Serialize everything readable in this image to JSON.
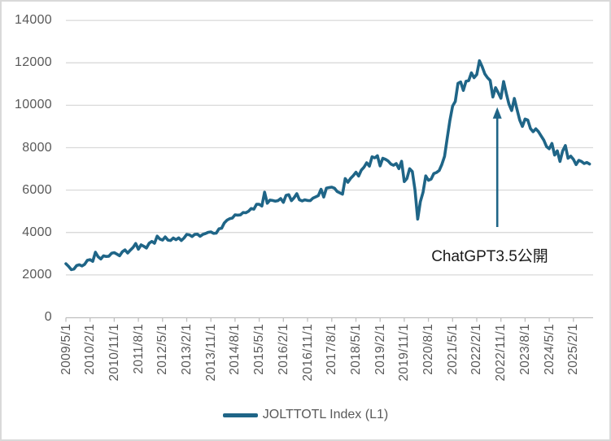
{
  "legend": {
    "label": "JOLTTOTL Index (L1)"
  },
  "chart_data": {
    "type": "line",
    "title": "",
    "xlabel": "",
    "ylabel": "",
    "ylim": [
      0,
      14000
    ],
    "y_ticks": [
      0,
      2000,
      4000,
      6000,
      8000,
      10000,
      12000,
      14000
    ],
    "grid": "horizontal",
    "legend_position": "bottom",
    "x_tick_labels": [
      "2009/5/1",
      "2010/2/1",
      "2010/11/1",
      "2011/8/1",
      "2012/5/1",
      "2013/2/1",
      "2013/11/1",
      "2014/8/1",
      "2015/5/1",
      "2016/2/1",
      "2016/11/1",
      "2017/8/1",
      "2018/5/1",
      "2019/2/1",
      "2019/11/1",
      "2020/8/1",
      "2021/5/1",
      "2022/2/1",
      "2022/11/1",
      "2023/8/1",
      "2024/5/1",
      "2025/2/1"
    ],
    "x_tick_interval_months": 9,
    "annotation": {
      "text": "ChatGPT3.5公開",
      "arrow_points_to_date": "2022/11/1"
    },
    "series": [
      {
        "name": "JOLTTOTL Index (L1)",
        "start_date": "2009/5/1",
        "frequency": "monthly",
        "values": [
          2530,
          2400,
          2250,
          2280,
          2440,
          2480,
          2420,
          2500,
          2690,
          2720,
          2640,
          3070,
          2860,
          2750,
          2900,
          2870,
          2880,
          3020,
          3050,
          2980,
          2900,
          3090,
          3180,
          3030,
          3170,
          3290,
          3480,
          3210,
          3420,
          3350,
          3270,
          3490,
          3580,
          3490,
          3830,
          3690,
          3640,
          3790,
          3640,
          3620,
          3740,
          3660,
          3750,
          3620,
          3740,
          3910,
          3890,
          3810,
          3910,
          3920,
          3820,
          3910,
          3950,
          4010,
          4030,
          3960,
          3970,
          4170,
          4200,
          4450,
          4580,
          4650,
          4680,
          4830,
          4820,
          4830,
          4940,
          4930,
          5000,
          5130,
          5100,
          5330,
          5330,
          5250,
          5900,
          5380,
          5530,
          5510,
          5480,
          5500,
          5600,
          5420,
          5750,
          5780,
          5500,
          5640,
          5830,
          5540,
          5490,
          5540,
          5510,
          5500,
          5620,
          5680,
          5740,
          6040,
          5670,
          6090,
          6120,
          6140,
          6090,
          5930,
          5870,
          5810,
          6540,
          6370,
          6550,
          6680,
          6840,
          6660,
          6940,
          7080,
          7290,
          7130,
          7570,
          7520,
          7620,
          7140,
          7500,
          7450,
          7370,
          7230,
          7170,
          7250,
          7010,
          7360,
          6400,
          6550,
          7010,
          6870,
          6000,
          4630,
          5460,
          5900,
          6670,
          6460,
          6520,
          6780,
          6830,
          6920,
          7210,
          7590,
          8450,
          9290,
          9960,
          10180,
          11030,
          11100,
          10700,
          11130,
          11160,
          11530,
          11300,
          11450,
          12100,
          11820,
          11480,
          11300,
          11170,
          10390,
          10830,
          10590,
          10330,
          11120,
          10560,
          10050,
          9750,
          10320,
          9800,
          9300,
          9000,
          9350,
          9300,
          8900,
          8750,
          8890,
          8750,
          8550,
          8350,
          8050,
          7950,
          8200,
          7650,
          7850,
          7350,
          7850,
          8100,
          7500,
          7600,
          7450,
          7200,
          7400,
          7350,
          7250,
          7300,
          7230
        ]
      }
    ],
    "colors": {
      "line": "#1F6587",
      "grid": "#D9D9D9",
      "axis": "#BFBFBF",
      "tick_label": "#595959",
      "annotation_text": "#1A1A1A",
      "background": "#FFFFFF",
      "border": "#D9D9D9"
    }
  }
}
